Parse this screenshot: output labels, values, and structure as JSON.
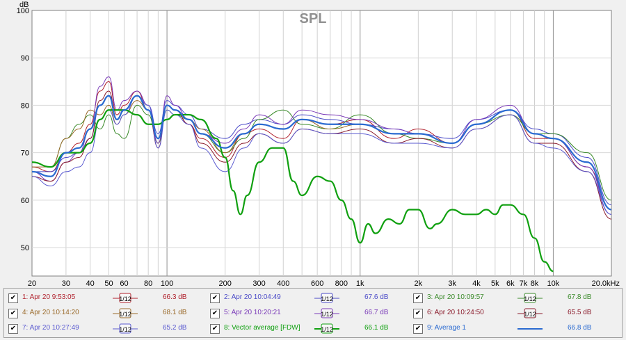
{
  "chart_data": {
    "type": "line",
    "title": "SPL",
    "ylabel": "dB",
    "xscale": "log",
    "xlim": [
      20,
      20000
    ],
    "ylim": [
      44,
      100
    ],
    "grid": true,
    "legend_position": "bottom",
    "xticks": [
      "20",
      "30",
      "40",
      "50",
      "60",
      "80",
      "100",
      "200",
      "300",
      "400",
      "600",
      "800",
      "1k",
      "2k",
      "3k",
      "4k",
      "5k",
      "6k",
      "7k",
      "8k",
      "10k",
      "20.0kHz"
    ],
    "xtick_values": [
      20,
      30,
      40,
      50,
      60,
      80,
      100,
      200,
      300,
      400,
      600,
      800,
      1000,
      2000,
      3000,
      4000,
      5000,
      6000,
      7000,
      8000,
      10000,
      20000
    ],
    "yticks": [
      50,
      60,
      70,
      80,
      90,
      100
    ],
    "series": [
      {
        "name": "1: Apr 20 9:53:05",
        "value_label": "66.3 dB",
        "color": "#b0202c",
        "smoothing": "1/12",
        "x": [
          20,
          25,
          30,
          35,
          40,
          45,
          50,
          55,
          60,
          70,
          80,
          90,
          100,
          110,
          130,
          150,
          200,
          250,
          300,
          400,
          500,
          700,
          1000,
          1500,
          2000,
          3000,
          4000,
          6000,
          8000,
          10000,
          15000,
          20000
        ],
        "y": [
          67,
          66,
          70,
          72,
          76,
          83,
          85,
          78,
          80,
          83,
          79,
          72,
          80,
          79,
          76,
          73,
          69,
          74,
          75,
          73,
          77,
          76,
          77,
          73,
          75,
          72,
          76,
          79,
          73,
          73,
          67,
          58
        ]
      },
      {
        "name": "2: Apr 20 10:04:49",
        "value_label": "67.6 dB",
        "color": "#4a4ac8",
        "smoothing": "1/12",
        "x": [
          20,
          25,
          30,
          35,
          40,
          45,
          50,
          55,
          60,
          70,
          80,
          90,
          100,
          110,
          130,
          150,
          200,
          250,
          300,
          400,
          500,
          700,
          1000,
          1500,
          2000,
          3000,
          4000,
          6000,
          8000,
          10000,
          15000,
          20000
        ],
        "y": [
          66,
          66,
          69,
          70,
          73,
          80,
          82,
          77,
          79,
          82,
          80,
          74,
          81,
          80,
          78,
          75,
          73,
          76,
          77,
          76,
          78,
          77,
          76,
          75,
          74,
          73,
          77,
          79,
          75,
          74,
          69,
          59
        ]
      },
      {
        "name": "3: Apr 20 10:09:57",
        "value_label": "67.8 dB",
        "color": "#3a8a2a",
        "smoothing": "1/12",
        "x": [
          20,
          25,
          30,
          35,
          40,
          45,
          50,
          55,
          60,
          70,
          80,
          90,
          100,
          110,
          130,
          150,
          200,
          250,
          300,
          400,
          500,
          700,
          1000,
          1500,
          2000,
          3000,
          4000,
          6000,
          8000,
          10000,
          15000,
          20000
        ],
        "y": [
          68,
          67,
          73,
          76,
          78,
          75,
          78,
          74,
          73,
          80,
          78,
          72,
          79,
          78,
          77,
          74,
          70,
          73,
          77,
          79,
          76,
          75,
          78,
          74,
          73,
          72,
          76,
          78,
          74,
          74,
          70,
          60
        ]
      },
      {
        "name": "4: Apr 20 10:14:20",
        "value_label": "68.1 dB",
        "color": "#9a6a2a",
        "smoothing": "1/12",
        "x": [
          20,
          25,
          30,
          35,
          40,
          45,
          50,
          55,
          60,
          70,
          80,
          90,
          100,
          110,
          130,
          150,
          200,
          250,
          300,
          400,
          500,
          700,
          1000,
          1500,
          2000,
          3000,
          4000,
          6000,
          8000,
          10000,
          15000,
          20000
        ],
        "y": [
          67,
          67,
          73,
          75,
          79,
          78,
          80,
          76,
          78,
          81,
          79,
          73,
          80,
          79,
          77,
          75,
          70,
          74,
          76,
          75,
          77,
          75,
          76,
          74,
          74,
          72,
          76,
          79,
          74,
          73,
          68,
          58
        ]
      },
      {
        "name": "5: Apr 20 10:20:21",
        "value_label": "66.7 dB",
        "color": "#7a3ab8",
        "smoothing": "1/12",
        "x": [
          20,
          25,
          30,
          35,
          40,
          45,
          50,
          55,
          60,
          70,
          80,
          90,
          100,
          110,
          130,
          150,
          200,
          250,
          300,
          400,
          500,
          700,
          1000,
          1500,
          2000,
          3000,
          4000,
          6000,
          8000,
          10000,
          15000,
          20000
        ],
        "y": [
          66,
          64,
          68,
          70,
          75,
          84,
          86,
          79,
          81,
          83,
          80,
          72,
          82,
          80,
          77,
          74,
          72,
          75,
          78,
          76,
          79,
          78,
          77,
          75,
          74,
          72,
          77,
          80,
          74,
          73,
          67,
          57
        ]
      },
      {
        "name": "6: Apr 20 10:24:50",
        "value_label": "65.5 dB",
        "color": "#8a1a2a",
        "smoothing": "1/12",
        "x": [
          20,
          25,
          30,
          35,
          40,
          45,
          50,
          55,
          60,
          70,
          80,
          90,
          100,
          110,
          130,
          150,
          200,
          250,
          300,
          400,
          500,
          700,
          1000,
          1500,
          2000,
          3000,
          4000,
          6000,
          8000,
          10000,
          15000,
          20000
        ],
        "y": [
          65,
          64,
          68,
          69,
          73,
          81,
          83,
          77,
          79,
          82,
          79,
          71,
          80,
          79,
          76,
          72,
          68,
          72,
          74,
          72,
          75,
          74,
          75,
          72,
          73,
          71,
          75,
          78,
          72,
          72,
          66,
          56
        ]
      },
      {
        "name": "7: Apr 20 10:27:49",
        "value_label": "65.2 dB",
        "color": "#5a5ad0",
        "smoothing": "1/12",
        "x": [
          20,
          25,
          30,
          35,
          40,
          45,
          50,
          55,
          60,
          70,
          80,
          90,
          100,
          110,
          130,
          150,
          200,
          250,
          300,
          400,
          500,
          700,
          1000,
          1500,
          2000,
          3000,
          4000,
          6000,
          8000,
          10000,
          15000,
          20000
        ],
        "y": [
          65,
          63,
          66,
          67,
          70,
          77,
          79,
          76,
          78,
          82,
          80,
          71,
          79,
          78,
          76,
          71,
          66,
          71,
          74,
          72,
          75,
          74,
          74,
          72,
          72,
          71,
          75,
          78,
          72,
          71,
          66,
          57
        ]
      },
      {
        "name": "8: Vector average [FDW]",
        "value_label": "66.1 dB",
        "color": "#10a010",
        "smoothing": "1/12",
        "x": [
          20,
          25,
          30,
          35,
          40,
          45,
          50,
          55,
          60,
          70,
          80,
          90,
          100,
          110,
          130,
          150,
          180,
          200,
          220,
          240,
          260,
          300,
          350,
          400,
          450,
          500,
          600,
          700,
          800,
          900,
          1000,
          1100,
          1200,
          1400,
          1600,
          1800,
          2000,
          2300,
          2500,
          3000,
          3500,
          4000,
          4500,
          5000,
          5500,
          6000,
          7000,
          8000,
          9000,
          10000
        ],
        "y": [
          68,
          67,
          70,
          70,
          72,
          77,
          79,
          79,
          79,
          78,
          76,
          76,
          77,
          78,
          78,
          77,
          73,
          69,
          62,
          57,
          61,
          68,
          71,
          71,
          64,
          61,
          65,
          64,
          60,
          56,
          51,
          55,
          53,
          56,
          55,
          58,
          58,
          54,
          55,
          58,
          57,
          57,
          58,
          57,
          59,
          59,
          57,
          52,
          47,
          45
        ]
      },
      {
        "name": "9: Average 1",
        "value_label": "66.8 dB",
        "color": "#2a6ad0",
        "smoothing": "",
        "x": [
          20,
          25,
          30,
          35,
          40,
          45,
          50,
          55,
          60,
          70,
          80,
          90,
          100,
          110,
          130,
          150,
          200,
          250,
          300,
          400,
          500,
          700,
          1000,
          1500,
          2000,
          3000,
          4000,
          6000,
          8000,
          10000,
          15000,
          20000
        ],
        "y": [
          66,
          65,
          70,
          71,
          75,
          80,
          82,
          77,
          79,
          82,
          79,
          73,
          80,
          79,
          77,
          74,
          71,
          74,
          76,
          75,
          77,
          76,
          76,
          74,
          74,
          72,
          76,
          79,
          74,
          73,
          68,
          58
        ]
      }
    ]
  },
  "legend": {
    "smoothing_label": "1/12"
  }
}
